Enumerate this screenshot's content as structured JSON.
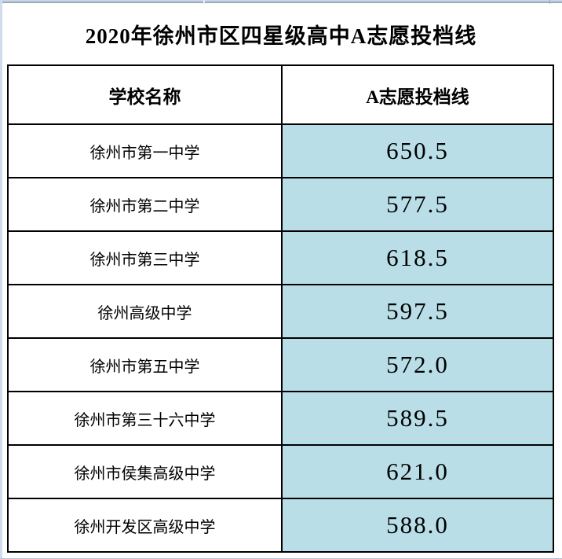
{
  "title": "2020年徐州市区四星级高中A志愿投档线",
  "table": {
    "columns": [
      "学校名称",
      "A志愿投档线"
    ],
    "rows": [
      {
        "school": "徐州市第一中学",
        "score": "650.5"
      },
      {
        "school": "徐州市第二中学",
        "score": "577.5"
      },
      {
        "school": "徐州市第三中学",
        "score": "618.5"
      },
      {
        "school": "徐州高级中学",
        "score": "597.5"
      },
      {
        "school": "徐州市第五中学",
        "score": "572.0"
      },
      {
        "school": "徐州市第三十六中学",
        "score": "589.5"
      },
      {
        "school": "徐州市侯集高级中学",
        "score": "621.0"
      },
      {
        "school": "徐州开发区高级中学",
        "score": "588.0"
      }
    ]
  },
  "colors": {
    "score_cell_bg": "#b9dee8",
    "table_border": "#000000",
    "title_text": "#000000",
    "top_strip": "#ccd3e8",
    "top_gridline": "#8fb1b7",
    "left_gridline": "#cfdcee"
  },
  "chart_data": {
    "type": "table",
    "title": "2020年徐州市区四星级高中A志愿投档线",
    "columns": [
      "学校名称",
      "A志愿投档线"
    ],
    "rows": [
      [
        "徐州市第一中学",
        650.5
      ],
      [
        "徐州市第二中学",
        577.5
      ],
      [
        "徐州市第三中学",
        618.5
      ],
      [
        "徐州高级中学",
        597.5
      ],
      [
        "徐州市第五中学",
        572.0
      ],
      [
        "徐州市第三十六中学",
        589.5
      ],
      [
        "徐州市侯集高级中学",
        621.0
      ],
      [
        "徐州开发区高级中学",
        588.0
      ]
    ],
    "layout_hints": {
      "title_position": "top-center",
      "score_column_highlight": "#b9dee8",
      "grid": "on"
    }
  }
}
